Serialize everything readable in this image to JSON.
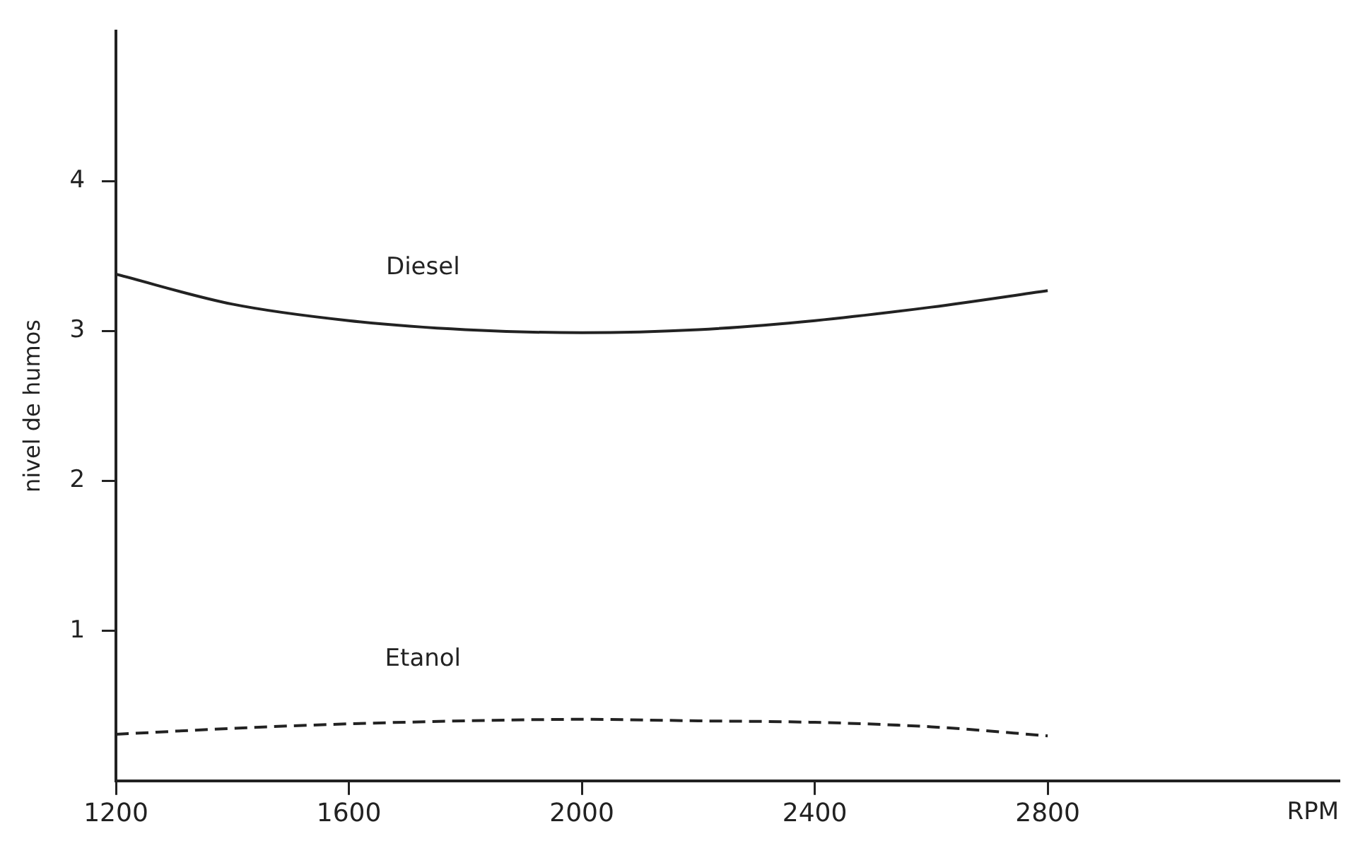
{
  "chart_data": {
    "type": "line",
    "xlabel": "RPM",
    "ylabel": "nivel de humos",
    "x": [
      1200,
      1400,
      1600,
      1800,
      2000,
      2200,
      2400,
      2600,
      2800
    ],
    "series": [
      {
        "name": "Diesel",
        "color": "#222222",
        "line_style": "solid",
        "values": [
          3.38,
          3.18,
          3.07,
          3.01,
          2.99,
          3.01,
          3.07,
          3.16,
          3.27
        ]
      },
      {
        "name": "Etanol",
        "color": "#222222",
        "line_style": "dashed",
        "values": [
          0.31,
          0.35,
          0.38,
          0.4,
          0.41,
          0.4,
          0.39,
          0.36,
          0.3
        ]
      }
    ],
    "xlim": [
      1200,
      3300
    ],
    "xticks": [
      1200,
      1600,
      2000,
      2400,
      2800
    ],
    "ylim": [
      0,
      5
    ],
    "yticks": [
      1,
      2,
      3,
      4
    ],
    "grid": false,
    "legend": false,
    "marker": "none"
  }
}
